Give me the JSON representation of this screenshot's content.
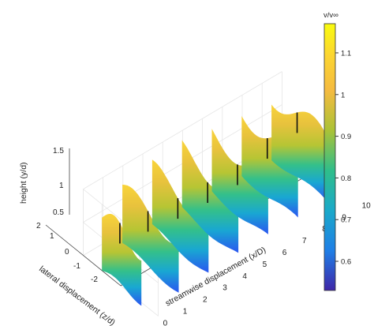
{
  "chart_data": {
    "type": "surface3d",
    "xlabel": "streamwise displacement (x/D)",
    "ylabel": "lateral displacement (z/d)",
    "zlabel": "height (y/d)",
    "xlim": [
      0,
      10
    ],
    "ylim": [
      -2,
      2
    ],
    "zlim": [
      0.5,
      1.5
    ],
    "x_ticks": [
      "0",
      "1",
      "2",
      "3",
      "4",
      "5",
      "6",
      "7",
      "8",
      "9",
      "10"
    ],
    "y_ticks": [
      "2",
      "1",
      "0",
      "-1",
      "-2"
    ],
    "z_ticks": [
      "0.5",
      "1",
      "1.5"
    ],
    "grid": true,
    "colormap": "parula",
    "colorbar": {
      "label": "v/v∞",
      "range": [
        0.53,
        1.17
      ],
      "ticks": [
        "0.6",
        "0.7",
        "0.8",
        "0.9",
        "1",
        "1.1"
      ]
    },
    "slices": [
      {
        "x": 0,
        "z_start": 1.0,
        "z_end": -1.1,
        "height_top": 1.3,
        "height_bottom": 0.5
      },
      {
        "x": 1.5,
        "z_start": 1.5,
        "z_end": -1.5,
        "height_top": 1.3,
        "height_bottom": 0.5
      },
      {
        "x": 3,
        "z_start": 1.5,
        "z_end": -1.5,
        "height_top": 1.35,
        "height_bottom": 0.5
      },
      {
        "x": 4.5,
        "z_start": 1.5,
        "z_end": -1.5,
        "height_top": 1.4,
        "height_bottom": 0.5
      },
      {
        "x": 6,
        "z_start": 1.5,
        "z_end": -1.5,
        "height_top": 1.4,
        "height_bottom": 0.5
      },
      {
        "x": 7.5,
        "z_start": 1.5,
        "z_end": -1.5,
        "height_top": 1.45,
        "height_bottom": 0.5
      },
      {
        "x": 9,
        "z_start": 1.5,
        "z_end": -1.5,
        "height_top": 1.45,
        "height_bottom": 0.5
      }
    ]
  }
}
